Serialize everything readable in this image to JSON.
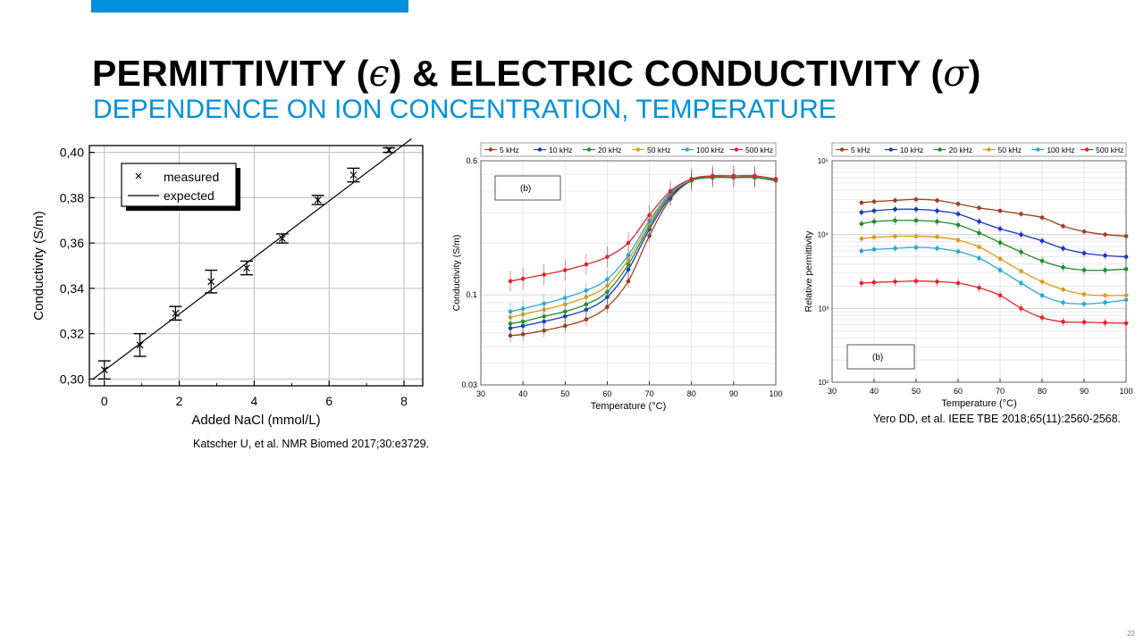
{
  "slide": {
    "title_prefix": "PERMITTIVITY (",
    "title_epsilon": "ϵ",
    "title_middle": ") & ELECTRIC CONDUCTIVITY (",
    "title_sigma": "σ",
    "title_suffix": ")",
    "subtitle": "DEPENDENCE ON ION CONCENTRATION, TEMPERATURE",
    "page_number": "22",
    "accent_color": "#0091da"
  },
  "citations": {
    "left": "Katscher U, et al. NMR Biomed 2017;30:e3729.",
    "right": "Yero DD, et al. IEEE TBE 2018;65(11):2560-2568."
  },
  "chart_data": [
    {
      "type": "scatter",
      "title": "",
      "xlabel": "Added NaCl (mmol/L)",
      "ylabel": "Conductivity (S/m)",
      "xlim": [
        -0.4,
        8.5
      ],
      "ylim": [
        0.297,
        0.403
      ],
      "x_ticks": [
        0,
        2,
        4,
        6,
        8
      ],
      "x_tick_labels": [
        "0",
        "2",
        "4",
        "6",
        "8"
      ],
      "y_ticks": [
        0.3,
        0.32,
        0.34,
        0.36,
        0.38,
        0.4
      ],
      "y_tick_labels": [
        "0,30",
        "0,32",
        "0,34",
        "0,36",
        "0,38",
        "0,40"
      ],
      "grid": true,
      "legend": [
        "measured",
        "expected"
      ],
      "series": [
        {
          "name": "measured",
          "marker": "x",
          "x": [
            0,
            0.95,
            1.9,
            2.85,
            3.8,
            4.75,
            5.7,
            6.65,
            7.6
          ],
          "y": [
            0.304,
            0.315,
            0.329,
            0.343,
            0.349,
            0.362,
            0.379,
            0.39,
            0.401
          ],
          "err": [
            0.004,
            0.005,
            0.003,
            0.005,
            0.003,
            0.002,
            0.002,
            0.003,
            0.001
          ]
        },
        {
          "name": "expected",
          "line": true,
          "x": [
            -0.3,
            8.2
          ],
          "y": [
            0.3,
            0.406
          ]
        }
      ]
    },
    {
      "type": "line",
      "title": "",
      "panel_label": "(b)",
      "xlabel": "Temperature (°C)",
      "ylabel": "Conductivity (S/m)",
      "xlim": [
        30,
        100
      ],
      "ylim": [
        0.03,
        0.6
      ],
      "yscale": "log",
      "x_ticks": [
        30,
        40,
        50,
        60,
        70,
        80,
        90,
        100
      ],
      "y_ticks": [
        0.03,
        0.1,
        0.6
      ],
      "y_tick_labels": [
        "0.03",
        "0.1",
        "0.6"
      ],
      "legend": [
        "5 kHz",
        "10 kHz",
        "20 kHz",
        "50 kHz",
        "100 kHz",
        "500 kHz"
      ],
      "categories": [
        37,
        40,
        45,
        50,
        55,
        60,
        65,
        70,
        75,
        80,
        85,
        90,
        95,
        100
      ],
      "series": [
        {
          "name": "5 kHz",
          "color": "#a0401c",
          "values": [
            0.058,
            0.059,
            0.062,
            0.066,
            0.072,
            0.085,
            0.12,
            0.22,
            0.36,
            0.46,
            0.48,
            0.48,
            0.48,
            0.46
          ]
        },
        {
          "name": "10 kHz",
          "color": "#1a35c8",
          "values": [
            0.064,
            0.066,
            0.07,
            0.075,
            0.082,
            0.097,
            0.14,
            0.24,
            0.37,
            0.46,
            0.48,
            0.48,
            0.48,
            0.46
          ]
        },
        {
          "name": "20 kHz",
          "color": "#1e8c2a",
          "values": [
            0.068,
            0.07,
            0.075,
            0.08,
            0.088,
            0.104,
            0.15,
            0.25,
            0.38,
            0.46,
            0.48,
            0.48,
            0.48,
            0.46
          ]
        },
        {
          "name": "50 kHz",
          "color": "#e09a18",
          "values": [
            0.074,
            0.077,
            0.082,
            0.088,
            0.097,
            0.113,
            0.16,
            0.26,
            0.39,
            0.47,
            0.49,
            0.49,
            0.49,
            0.47
          ]
        },
        {
          "name": "100 kHz",
          "color": "#2aa6d8",
          "values": [
            0.08,
            0.083,
            0.089,
            0.096,
            0.106,
            0.123,
            0.17,
            0.27,
            0.39,
            0.47,
            0.49,
            0.49,
            0.49,
            0.47
          ]
        },
        {
          "name": "500 kHz",
          "color": "#e0242a",
          "values": [
            0.12,
            0.124,
            0.131,
            0.139,
            0.15,
            0.166,
            0.2,
            0.29,
            0.4,
            0.47,
            0.49,
            0.49,
            0.49,
            0.47
          ]
        }
      ]
    },
    {
      "type": "line",
      "title": "",
      "panel_label": "(b)",
      "xlabel": "Temperature (°C)",
      "ylabel": "Relative permittivity",
      "xlim": [
        30,
        100
      ],
      "ylim": [
        100,
        100000
      ],
      "yscale": "log",
      "x_ticks": [
        30,
        40,
        50,
        60,
        70,
        80,
        90,
        100
      ],
      "y_ticks": [
        100,
        1000,
        10000,
        100000
      ],
      "y_tick_labels": [
        "10²",
        "10³",
        "10⁴",
        "10⁵"
      ],
      "legend": [
        "5 kHz",
        "10 kHz",
        "20 kHz",
        "50 kHz",
        "100 kHz",
        "500 kHz"
      ],
      "categories": [
        37,
        40,
        45,
        50,
        55,
        60,
        65,
        70,
        75,
        80,
        85,
        90,
        95,
        100
      ],
      "series": [
        {
          "name": "5 kHz",
          "color": "#a0401c",
          "values": [
            27000,
            28000,
            29000,
            30000,
            29000,
            26000,
            23000,
            21000,
            19000,
            17000,
            13000,
            11000,
            10000,
            9500
          ]
        },
        {
          "name": "10 kHz",
          "color": "#1a35c8",
          "values": [
            20000,
            21000,
            22000,
            22000,
            21000,
            19000,
            15000,
            12000,
            10000,
            8200,
            6500,
            5600,
            5200,
            5000
          ]
        },
        {
          "name": "20 kHz",
          "color": "#1e8c2a",
          "values": [
            14000,
            15000,
            15500,
            15500,
            15000,
            13500,
            10500,
            7800,
            5800,
            4400,
            3600,
            3300,
            3300,
            3400
          ]
        },
        {
          "name": "50 kHz",
          "color": "#e09a18",
          "values": [
            8800,
            9200,
            9500,
            9500,
            9300,
            8400,
            6800,
            4700,
            3200,
            2300,
            1800,
            1550,
            1500,
            1500
          ]
        },
        {
          "name": "100 kHz",
          "color": "#2aa6d8",
          "values": [
            6000,
            6300,
            6500,
            6700,
            6500,
            5900,
            4800,
            3300,
            2200,
            1500,
            1200,
            1150,
            1200,
            1300
          ]
        },
        {
          "name": "500 kHz",
          "color": "#e0242a",
          "values": [
            2200,
            2250,
            2300,
            2350,
            2300,
            2200,
            1900,
            1500,
            1000,
            750,
            660,
            650,
            640,
            630
          ]
        }
      ]
    }
  ]
}
